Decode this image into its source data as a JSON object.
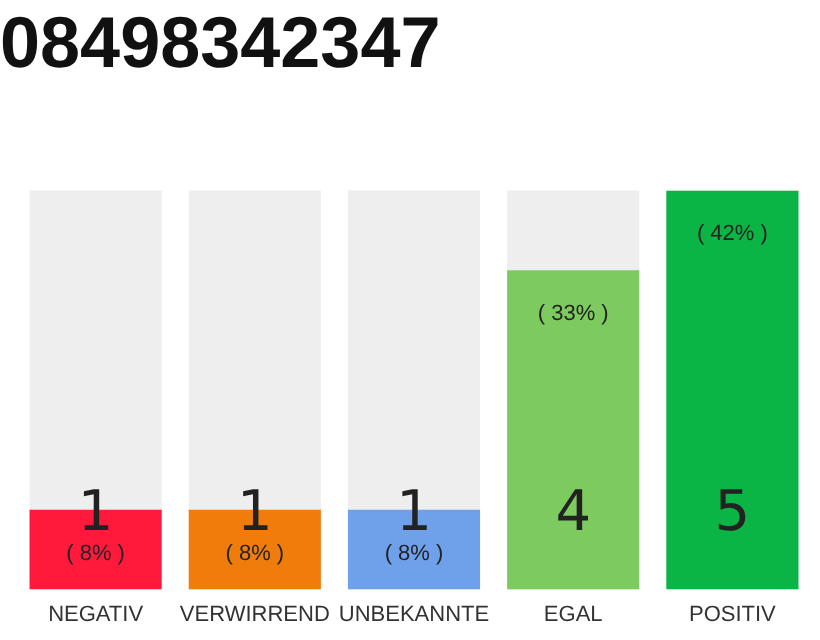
{
  "chart_data": {
    "type": "bar",
    "title": "08498342347",
    "categories": [
      "NEGATIV",
      "VERWIRREND",
      "UNBEKANNTE",
      "EGAL",
      "POSITIV"
    ],
    "values": [
      1,
      1,
      1,
      4,
      5
    ],
    "colors": [
      "#ff1a3c",
      "#f07d0b",
      "#6fa0ea",
      "#7dcb5e",
      "#0ab545"
    ],
    "ylim": [
      0,
      5
    ],
    "tick_labels": "x",
    "grid": false,
    "legend": false,
    "data_labels": true,
    "annotations": [
      {
        "text": "( 8% )",
        "x": "NEGATIV",
        "y": 1
      },
      {
        "text": "( 8% )",
        "x": "VERWIRREND",
        "y": 1
      },
      {
        "text": "( 8% )",
        "x": "UNBEKANNTE",
        "y": 1
      },
      {
        "text": "( 33% )",
        "x": "EGAL",
        "y": 4
      },
      {
        "text": "( 42% )",
        "x": "POSITIV",
        "y": 5
      }
    ]
  }
}
